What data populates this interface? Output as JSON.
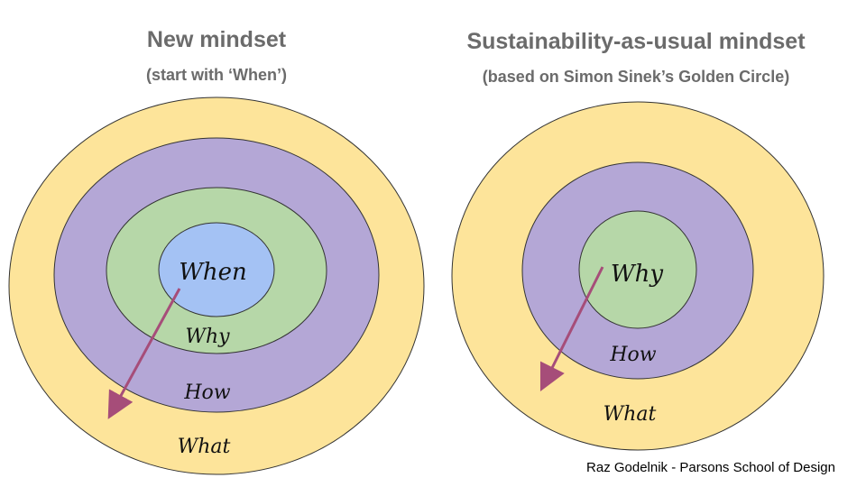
{
  "left_diagram": {
    "title": "New mindset",
    "subtitle": "(start with ‘When’)",
    "rings": [
      {
        "label": "What",
        "color": "#fde49a"
      },
      {
        "label": "How",
        "color": "#b4a7d6"
      },
      {
        "label": "Why",
        "color": "#b6d7a8"
      },
      {
        "label": "When",
        "color": "#a4c2f4"
      }
    ]
  },
  "right_diagram": {
    "title": "Sustainability-as-usual mindset",
    "subtitle": "(based on Simon Sinek’s Golden Circle)",
    "rings": [
      {
        "label": "What",
        "color": "#fde49a"
      },
      {
        "label": "How",
        "color": "#b4a7d6"
      },
      {
        "label": "Why",
        "color": "#b6d7a8"
      }
    ]
  },
  "arrow_color": "#a64d79",
  "credit": "Raz Godelnik - Parsons School of Design"
}
